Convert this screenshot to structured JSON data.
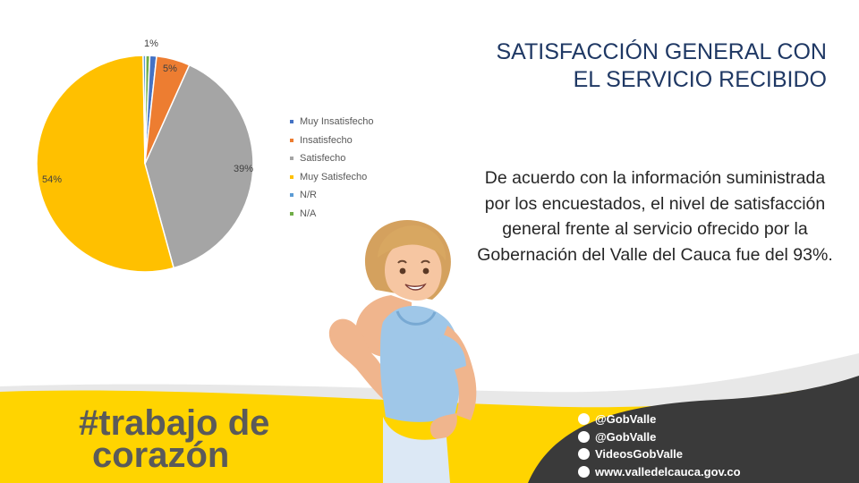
{
  "slide": {
    "title_line1": "SATISFACCIÓN GENERAL CON",
    "title_line2": "EL SERVICIO RECIBIDO",
    "body_text": "De acuerdo con la información suministrada por los encuestados, el nivel de satisfacción general frente al servicio ofrecido por la Gobernación del Valle del Cauca fue del 93%.",
    "slogan_hashtag": "#trabajo de",
    "slogan_word": "corazón",
    "social": [
      {
        "icon": "facebook-icon",
        "label": "@GobValle"
      },
      {
        "icon": "twitter-icon",
        "label": "@GobValle"
      },
      {
        "icon": "youtube-icon",
        "label": "VideosGobValle"
      },
      {
        "icon": "web-icon",
        "label": "www.valledelcauca.gov.co"
      }
    ]
  },
  "colors": {
    "title": "#1f3864",
    "footer_yellow": "#ffd400",
    "footer_band": "#e8e8e8"
  },
  "chart_data": {
    "type": "pie",
    "title": "",
    "categories": [
      "Muy Insatisfecho",
      "Insatisfecho",
      "Satisfecho",
      "Muy Satisfecho",
      "N/R",
      "N/A"
    ],
    "values": [
      1,
      5,
      39,
      54,
      0.4,
      0.6
    ],
    "labels": [
      "1%",
      "5%",
      "39%",
      "54%",
      "",
      ""
    ],
    "colors": [
      "#4472c4",
      "#ed7d31",
      "#a5a5a5",
      "#ffc000",
      "#5b9bd5",
      "#70ad47"
    ],
    "legend": "right",
    "legend_entries": [
      "Muy Insatisfecho",
      "Insatisfecho",
      "Satisfecho",
      "Muy Satisfecho",
      "N/R",
      "N/A"
    ]
  }
}
